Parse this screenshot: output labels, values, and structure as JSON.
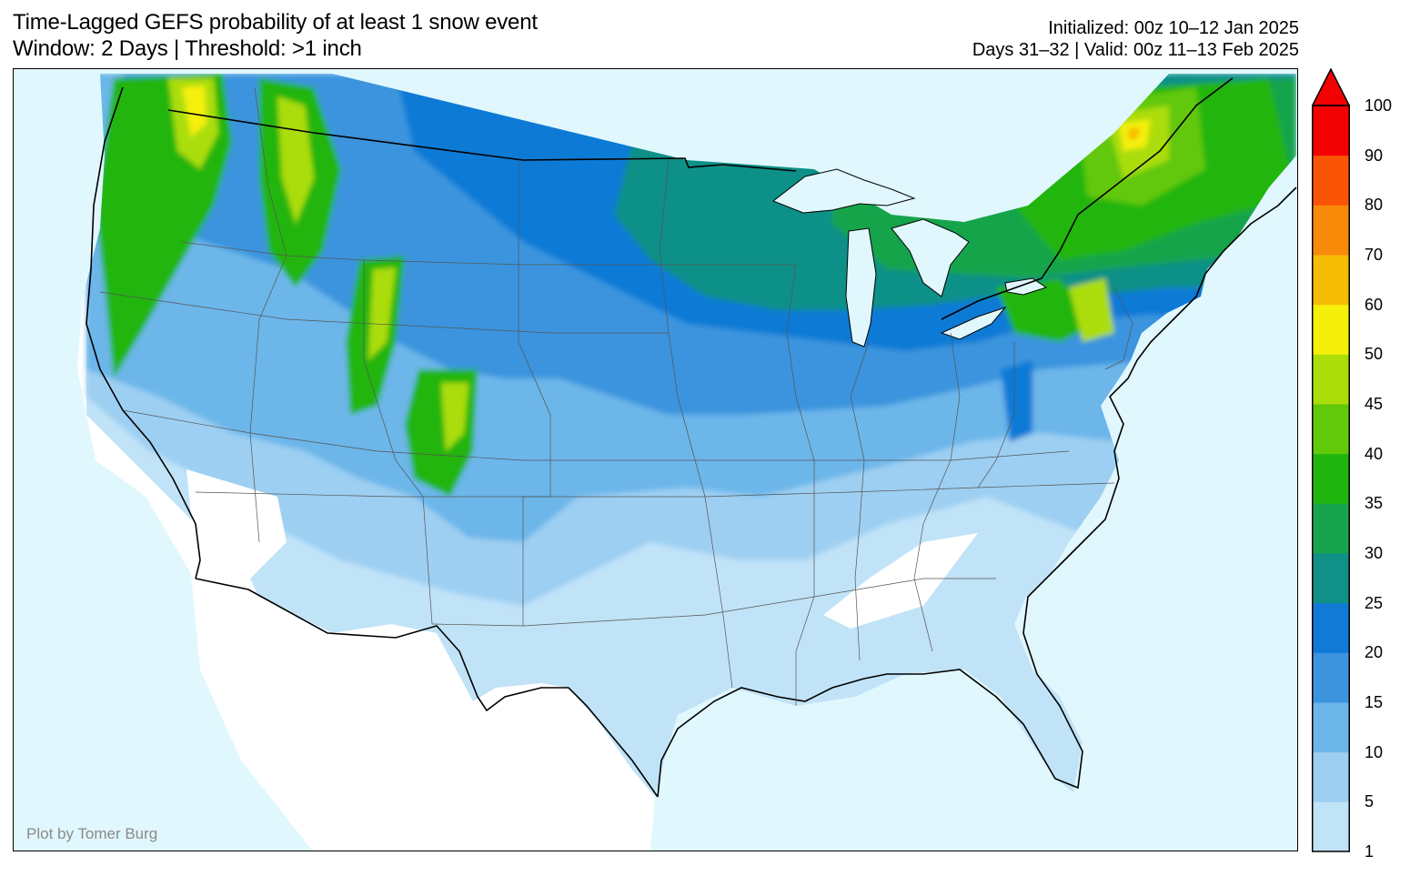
{
  "title": {
    "line1": "Time-Lagged GEFS probability of at least 1 snow event",
    "line2": "Window: 2 Days | Threshold: >1 inch"
  },
  "init": {
    "line1": "Initialized: 00z 10–12 Jan 2025",
    "line2": "Days 31–32 | Valid: 00z 11–13 Feb 2025"
  },
  "credit": "Plot by Tomer Burg",
  "colorbar": {
    "levels": [
      1,
      5,
      10,
      15,
      20,
      25,
      30,
      35,
      40,
      45,
      50,
      60,
      70,
      80,
      90,
      100
    ],
    "tick_labels": [
      "1",
      "5",
      "10",
      "15",
      "20",
      "25",
      "30",
      "35",
      "40",
      "45",
      "50",
      "60",
      "70",
      "80",
      "90",
      "100"
    ],
    "colors": [
      "#c1e3f8",
      "#9dcff2",
      "#6cb6ea",
      "#3b94dd",
      "#107ad6",
      "#109087",
      "#18a44c",
      "#20b50e",
      "#62c80a",
      "#abdd08",
      "#f5f00a",
      "#f6bc05",
      "#f88a0a",
      "#fa5507",
      "#f20202"
    ],
    "extend": "max"
  },
  "colors": {
    "ocean": "#e0f7fd",
    "land_zero": "#ffffff"
  }
}
